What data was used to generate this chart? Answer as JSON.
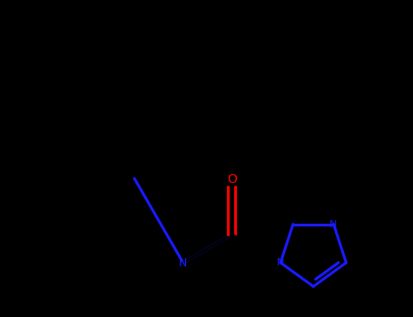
{
  "bg_color": "#000000",
  "bond_color": "#000000",
  "nitrogen_color": "#1a1aff",
  "oxygen_color": "#ff0000",
  "line_width": 2.2,
  "figsize": [
    4.55,
    3.5
  ],
  "dpi": 100,
  "xlim": [
    0,
    455
  ],
  "ylim": [
    0,
    350
  ]
}
